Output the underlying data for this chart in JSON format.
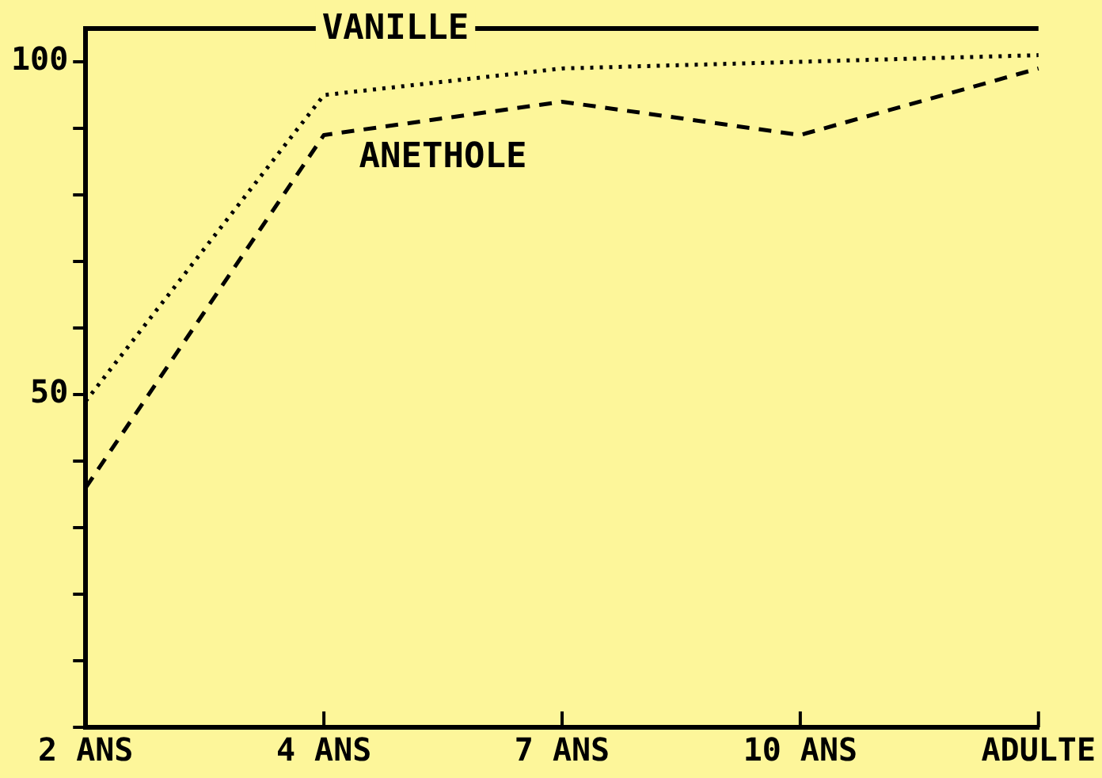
{
  "chart_data": {
    "type": "line",
    "categories": [
      "2 ANS",
      "4 ANS",
      "7 ANS",
      "10 ANS",
      "ADULTE"
    ],
    "series": [
      {
        "name": "VANILLE",
        "color": "#000000",
        "line_style": "dotted",
        "values": [
          49,
          95,
          99,
          100,
          101
        ]
      },
      {
        "name": "ANETHOLE",
        "color": "#000000",
        "line_style": "dashed",
        "values": [
          36,
          89,
          94,
          89,
          99
        ]
      }
    ],
    "ylim": [
      0,
      105
    ],
    "yticks": [
      {
        "value": 0,
        "label": null
      },
      {
        "value": 10,
        "label": null
      },
      {
        "value": 20,
        "label": null
      },
      {
        "value": 30,
        "label": null
      },
      {
        "value": 40,
        "label": null
      },
      50,
      {
        "value": 60,
        "label": null
      },
      {
        "value": 70,
        "label": null
      },
      {
        "value": 80,
        "label": null
      },
      {
        "value": 90,
        "label": null
      },
      100
    ],
    "grid": false,
    "legend": false,
    "marker": "none"
  }
}
